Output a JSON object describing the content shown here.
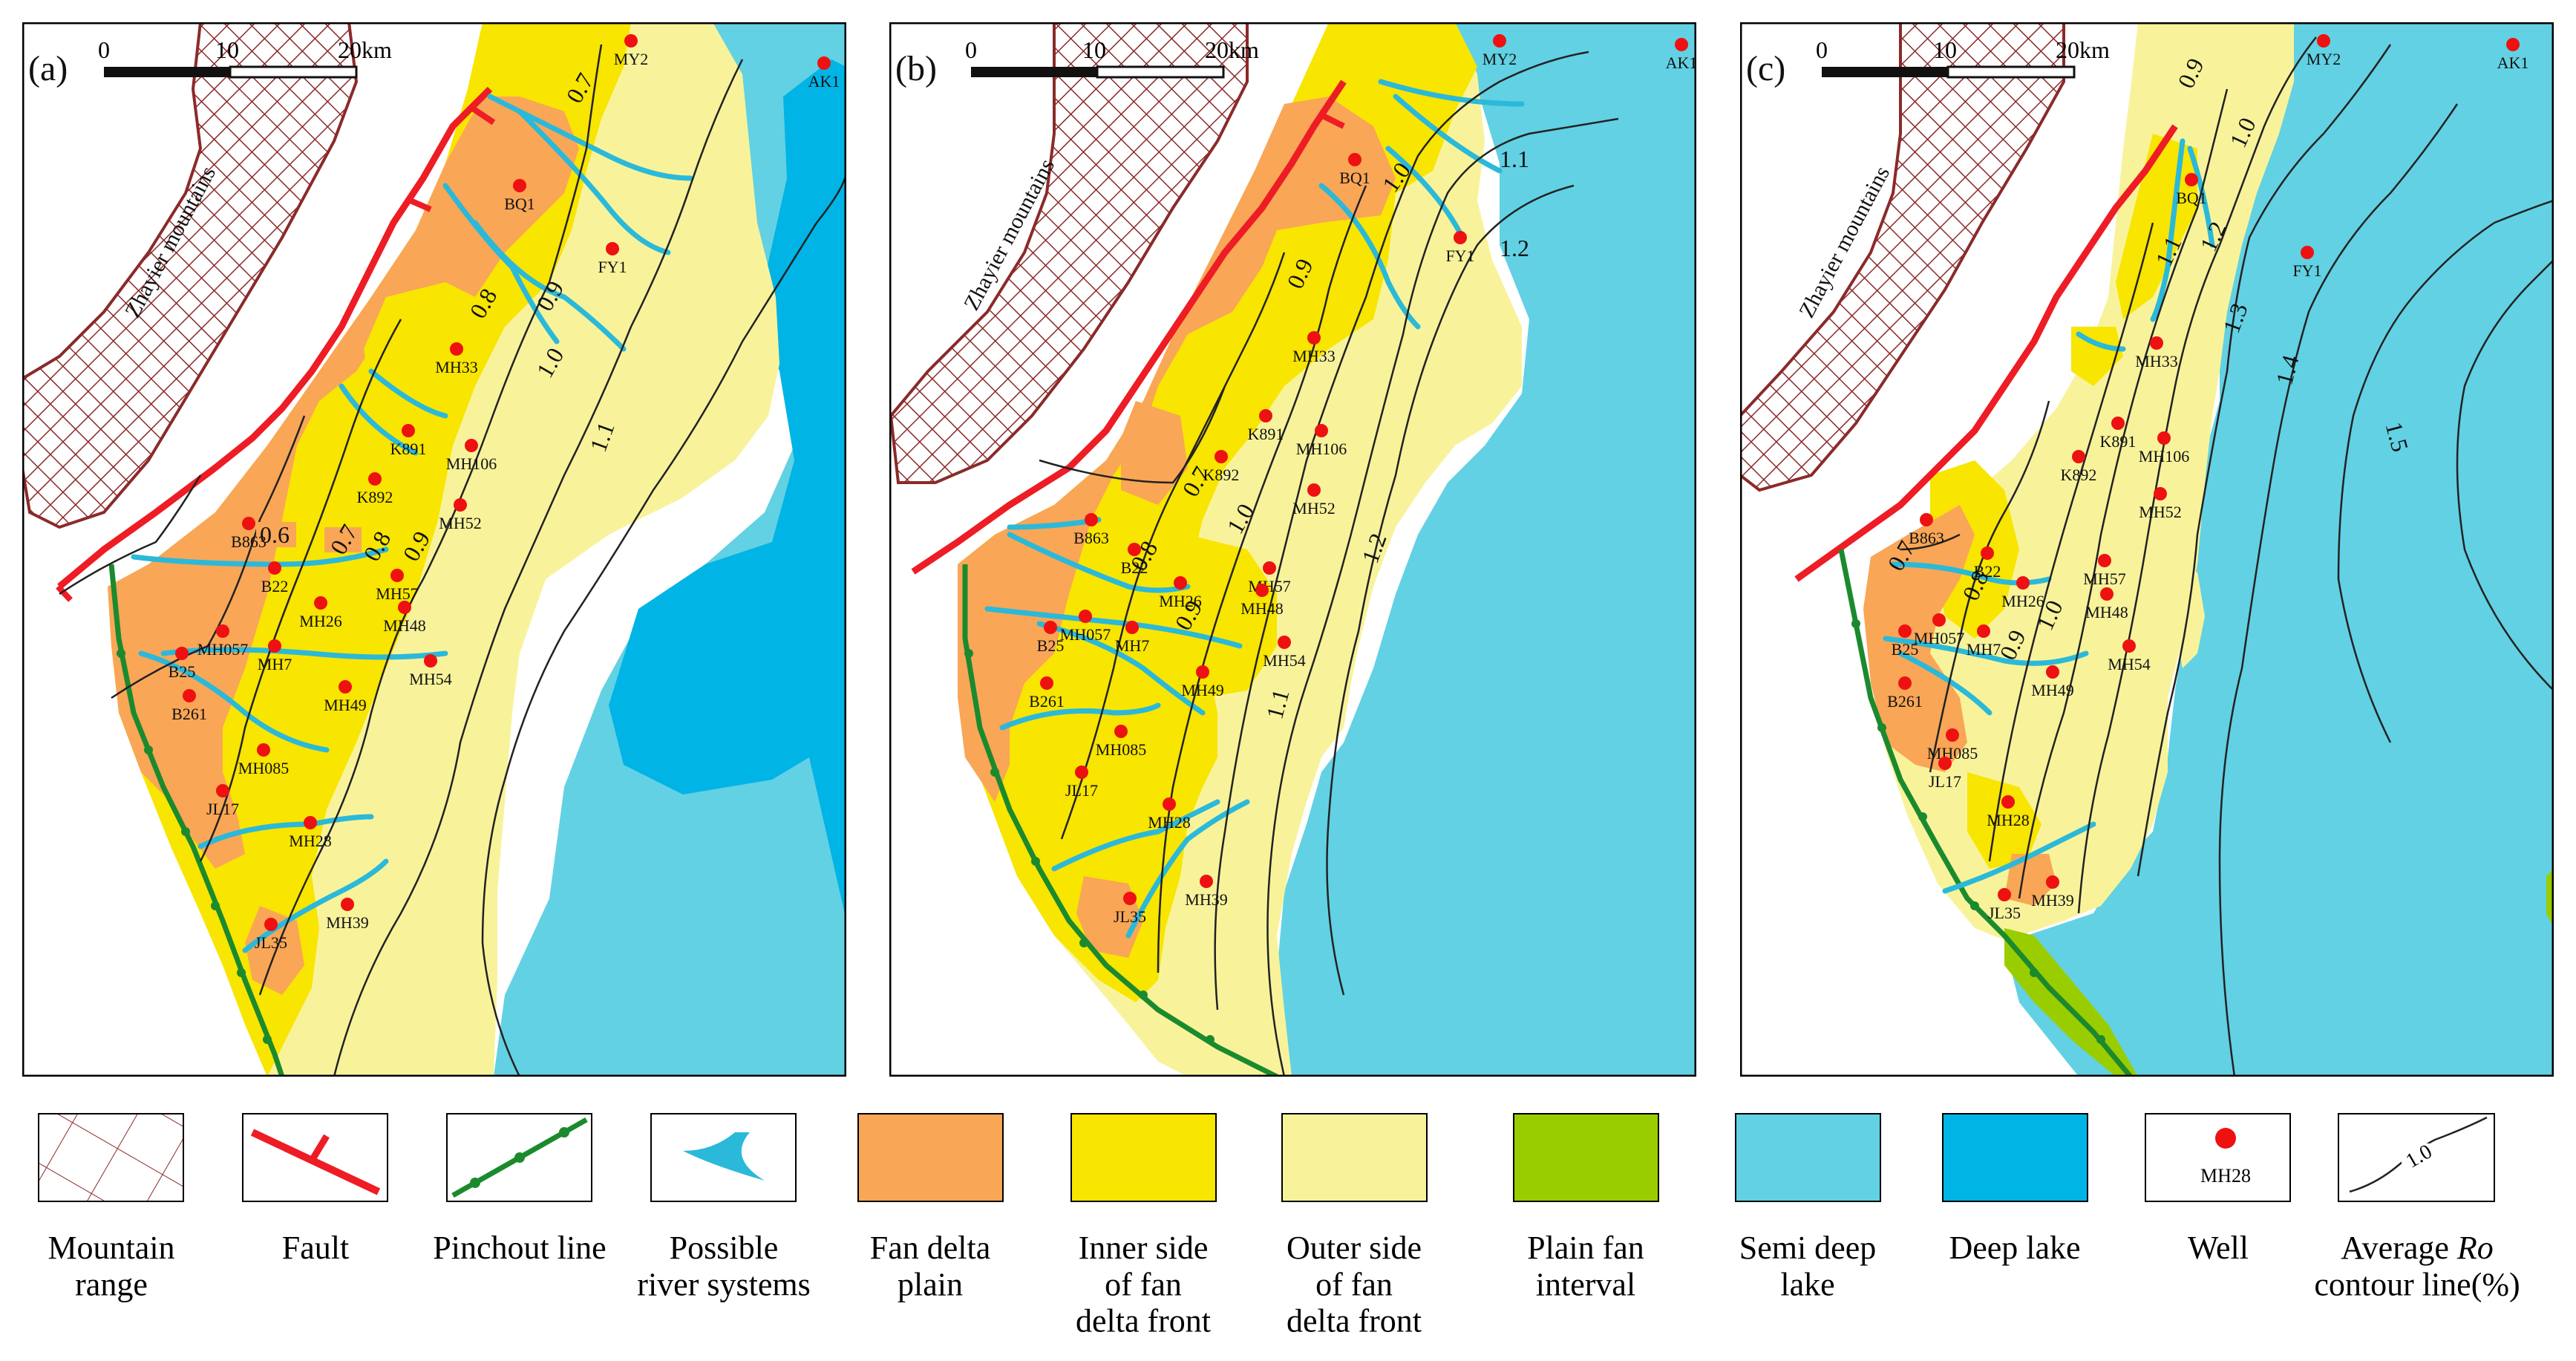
{
  "panels": [
    {
      "label": "(a)",
      "mountain_label": "Zhayier mountains",
      "scale": {
        "ticks": [
          "0",
          "10",
          "20km"
        ]
      },
      "contour_labels": [
        "0.6",
        "0.7",
        "0.8",
        "0.9",
        "0.7",
        "0.8",
        "0.9",
        "1.0",
        "1.1"
      ],
      "wells": [
        "MY2",
        "AK1",
        "BQ1",
        "FY1",
        "MH33",
        "K891",
        "MH106",
        "K892",
        "MH52",
        "B863",
        "B22",
        "MH57",
        "MH26",
        "MH48",
        "MH057",
        "MH7",
        "B25",
        "MH54",
        "MH49",
        "B261",
        "MH085",
        "JL17",
        "MH28",
        "JL35",
        "MH39"
      ]
    },
    {
      "label": "(b)",
      "mountain_label": "Zhayier mountains",
      "scale": {
        "ticks": [
          "0",
          "10",
          "20km"
        ]
      },
      "contour_labels": [
        "0.7",
        "0.8",
        "0.9",
        "0.9",
        "1.0",
        "1.0",
        "1.1",
        "1.1",
        "1.2",
        "1.2"
      ],
      "wells": [
        "MY2",
        "AK1",
        "BQ1",
        "FY1",
        "MH33",
        "K891",
        "K892",
        "MH106",
        "MH52",
        "B863",
        "B22",
        "MH57",
        "MH26",
        "MH48",
        "MH057",
        "MH7",
        "B25",
        "MH54",
        "MH49",
        "B261",
        "MH085",
        "JL17",
        "MH28",
        "MH39",
        "JL35"
      ]
    },
    {
      "label": "(c)",
      "mountain_label": "Zhayier mountains",
      "scale": {
        "ticks": [
          "0",
          "10",
          "20km"
        ]
      },
      "contour_labels": [
        "0.9",
        "1.0",
        "1.1",
        "1.2",
        "1.3",
        "1.4",
        "1.5",
        "0.7",
        "0.8",
        "0.9",
        "1.0"
      ],
      "wells": [
        "MY2",
        "AK1",
        "BQ1",
        "FY1",
        "MH33",
        "K891",
        "MH106",
        "K892",
        "MH52",
        "B863",
        "B22",
        "MH57",
        "MH26",
        "MH48",
        "MH057",
        "MH7",
        "B25",
        "MH54",
        "MH49",
        "B261",
        "MH085",
        "JL17",
        "MH28",
        "JL35",
        "MH39"
      ]
    }
  ],
  "legend": [
    {
      "key": "mountain",
      "label": "Mountain range"
    },
    {
      "key": "fault",
      "label": "Fault"
    },
    {
      "key": "pinchout",
      "label": "Pinchout line"
    },
    {
      "key": "river",
      "label": "Possible river systems"
    },
    {
      "key": "fan-delta-plain",
      "label": "Fan delta plain",
      "color": "#F9A657"
    },
    {
      "key": "inner-front",
      "label": "Inner side of fan delta front",
      "color": "#F8E500"
    },
    {
      "key": "outer-front",
      "label": "Outer side of fan delta front",
      "color": "#F8F39B"
    },
    {
      "key": "plain-fan",
      "label": "Plain fan interval",
      "color": "#9ACD00"
    },
    {
      "key": "semi-deep",
      "label": "Semi deep lake",
      "color": "#62D1E3"
    },
    {
      "key": "deep",
      "label": "Deep lake",
      "color": "#00B4E6"
    },
    {
      "key": "well",
      "label": "Well",
      "sample": "MH28"
    },
    {
      "key": "ro",
      "label": "Average Ro contour line(%)",
      "sample": "1.0"
    }
  ],
  "colors": {
    "fan_delta_plain": "#F9A657",
    "inner_front": "#F8E500",
    "outer_front": "#F8F39B",
    "plain_fan": "#9ACD00",
    "semi_deep": "#62D1E3",
    "deep": "#00B4E6",
    "fault": "#EE1C24",
    "pinchout": "#1B8A2E",
    "river": "#2BB9D9",
    "mountain": "#8B2A2A",
    "well": "#EE1111"
  }
}
